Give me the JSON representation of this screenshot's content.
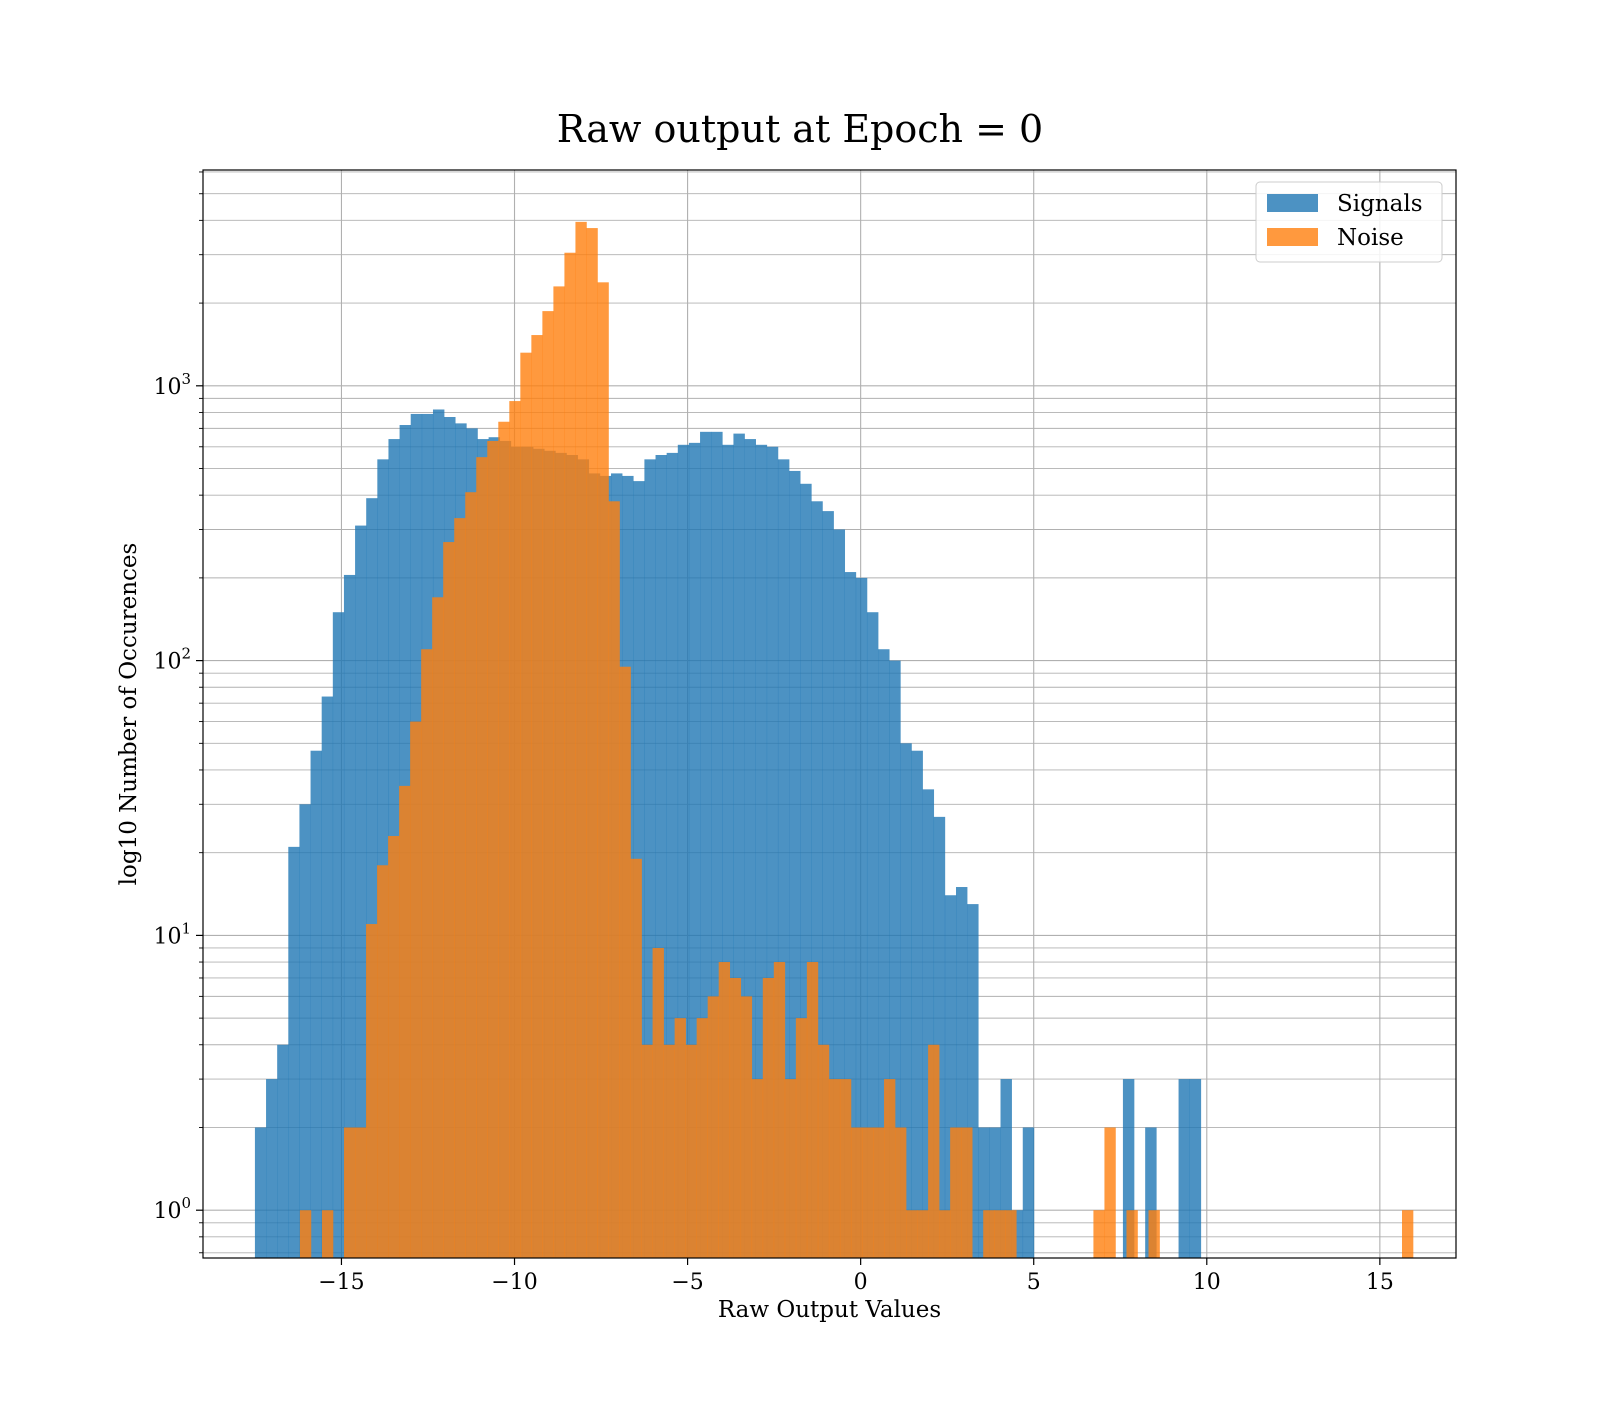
{
  "chart_data": {
    "type": "histogram",
    "title": "Raw output at Epoch = 0",
    "xlabel": "Raw Output Values",
    "ylabel": "log10 Number of Occurences",
    "xlim": [
      -19,
      17.2
    ],
    "ylim": [
      0.67,
      6100
    ],
    "yscale": "log",
    "grid": true,
    "legend_position": "top-right",
    "x_ticks": [
      -15,
      -10,
      -5,
      0,
      5,
      10,
      15
    ],
    "x_tick_labels": [
      "−15",
      "−10",
      "−5",
      "0",
      "5",
      "10",
      "15"
    ],
    "y_ticks": [
      1,
      10,
      100,
      1000
    ],
    "y_tick_labels": [
      {
        "base": "10",
        "exp": "0"
      },
      {
        "base": "10",
        "exp": "1"
      },
      {
        "base": "10",
        "exp": "2"
      },
      {
        "base": "10",
        "exp": "3"
      }
    ],
    "series": [
      {
        "name": "Signals",
        "color": "#1f77b4",
        "opacity": 0.8,
        "bin_start": -17.5,
        "bin_width": 0.3215,
        "counts": [
          2,
          3,
          4,
          21,
          30,
          47,
          74,
          150,
          205,
          310,
          390,
          540,
          640,
          720,
          790,
          790,
          820,
          770,
          730,
          700,
          640,
          650,
          630,
          600,
          600,
          590,
          580,
          570,
          560,
          540,
          480,
          470,
          480,
          470,
          450,
          540,
          560,
          570,
          610,
          620,
          680,
          680,
          610,
          670,
          640,
          610,
          600,
          540,
          490,
          440,
          380,
          350,
          300,
          210,
          200,
          150,
          110,
          100,
          50,
          47,
          34,
          27,
          14,
          15,
          13,
          2,
          2,
          3,
          1,
          2,
          0,
          0,
          0,
          0,
          0,
          0,
          0,
          0,
          3,
          0,
          2,
          0,
          0,
          3,
          3
        ]
      },
      {
        "name": "Noise",
        "color": "#ff7f0e",
        "opacity": 0.8,
        "bin_start": -16.2,
        "bin_width": 0.3184,
        "counts": [
          1,
          0,
          1,
          0,
          2,
          2,
          11,
          18,
          23,
          35,
          60,
          110,
          170,
          270,
          330,
          410,
          550,
          630,
          740,
          880,
          1320,
          1530,
          1870,
          2300,
          3050,
          3950,
          3750,
          2380,
          380,
          95,
          19,
          4,
          9,
          4,
          5,
          4,
          5,
          6,
          8,
          7,
          6,
          3,
          7,
          8,
          3,
          5,
          8,
          4,
          3,
          3,
          2,
          2,
          2,
          3,
          2,
          1,
          1,
          4,
          1,
          2,
          2,
          0,
          1,
          1,
          1,
          0,
          0,
          0,
          0,
          0,
          0,
          0,
          1,
          2,
          0,
          1,
          0,
          1,
          0,
          0,
          0,
          0,
          0,
          0,
          0,
          0,
          0,
          0,
          0,
          0,
          0,
          0,
          0,
          0,
          0,
          0,
          0,
          0,
          0,
          0,
          1
        ]
      }
    ]
  }
}
